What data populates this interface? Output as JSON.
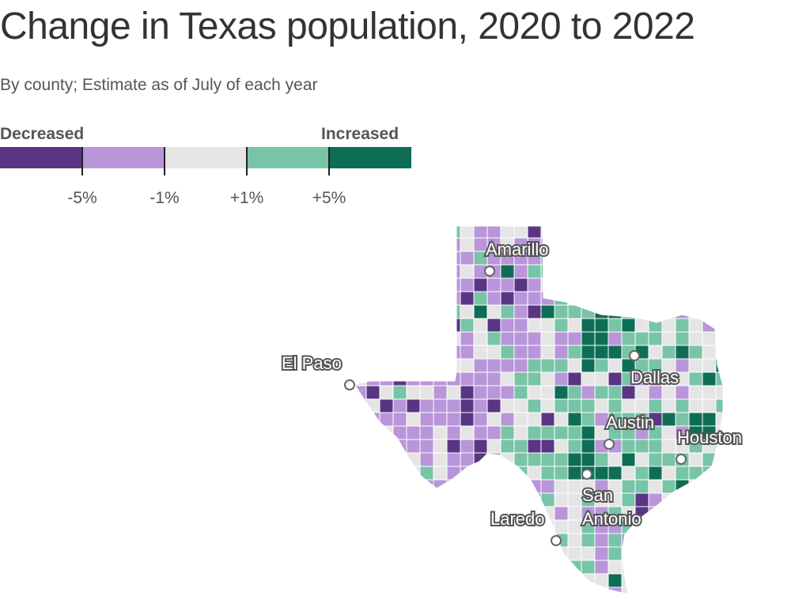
{
  "title": "Change in Texas population, 2020 to 2022",
  "subtitle": "By county; Estimate as of July of each year",
  "legend": {
    "left_label": "Decreased",
    "right_label": "Increased",
    "colors": [
      "#5a3584",
      "#b995da",
      "#e5e5e5",
      "#78c4a7",
      "#0e6e55"
    ],
    "ticks": [
      "-5%",
      "-1%",
      "+1%",
      "+5%"
    ]
  },
  "cities": [
    {
      "name": "Amarillo"
    },
    {
      "name": "El Paso"
    },
    {
      "name": "Dallas"
    },
    {
      "name": "Austin"
    },
    {
      "name": "Houston"
    },
    {
      "name": "San Antonio",
      "lines": [
        "San",
        "Antonio"
      ]
    },
    {
      "name": "Laredo"
    }
  ]
}
